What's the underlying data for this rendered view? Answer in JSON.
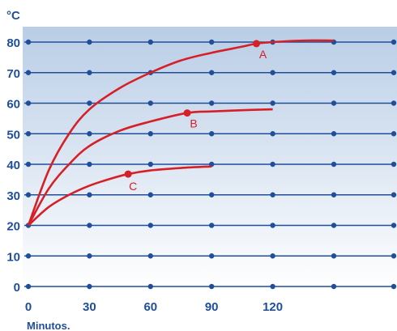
{
  "chart_data": {
    "type": "line",
    "unit_label": "°C",
    "xlabel": "Minutos.",
    "ylabel": "",
    "x_ticks": [
      0,
      30,
      60,
      90,
      120
    ],
    "y_ticks": [
      0,
      10,
      20,
      30,
      40,
      50,
      60,
      70,
      80
    ],
    "xlim": [
      0,
      150
    ],
    "ylim": [
      0,
      80
    ],
    "grid_columns": [
      0,
      30,
      60,
      90,
      120,
      150
    ],
    "series": [
      {
        "name": "A",
        "x": [
          0,
          10,
          20,
          30,
          45,
          60,
          75,
          90,
          105,
          112,
          120,
          135,
          150
        ],
        "y": [
          20,
          38,
          50,
          58,
          65,
          70,
          74,
          76.5,
          78.5,
          79.5,
          80,
          80.5,
          80.5
        ],
        "marker": {
          "x": 112,
          "y": 79.5
        }
      },
      {
        "name": "B",
        "x": [
          0,
          10,
          20,
          30,
          45,
          60,
          78,
          90,
          105,
          120
        ],
        "y": [
          20,
          32,
          40,
          46,
          51,
          54,
          56.8,
          57.3,
          57.7,
          58
        ],
        "marker": {
          "x": 78,
          "y": 56.8
        }
      },
      {
        "name": "C",
        "x": [
          0,
          10,
          20,
          30,
          40,
          49,
          60,
          75,
          90
        ],
        "y": [
          20,
          26,
          30,
          33,
          35.2,
          36.8,
          38,
          38.8,
          39.3
        ],
        "marker": {
          "x": 49,
          "y": 36.8
        }
      }
    ],
    "colors": {
      "line": "#d62027",
      "grid": "#1f4f9a",
      "text": "#1f4f9a",
      "bg_top": "#b9cde6",
      "bg_bottom": "#ffffff"
    }
  }
}
